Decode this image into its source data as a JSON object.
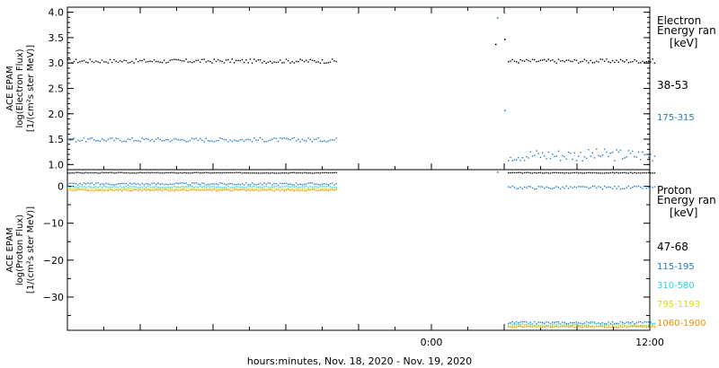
{
  "x_axis": {
    "label": "hours:minutes, Nov. 18, 2020 - Nov. 19, 2020",
    "range_hours": [
      -20,
      12
    ],
    "tick_labels": [
      {
        "hour": 0,
        "text": "0:00"
      },
      {
        "hour": 12,
        "text": "12:00"
      }
    ]
  },
  "panels": [
    {
      "name": "electron",
      "ylabel_lines": [
        "ACE EPAM",
        "log(Electron Flux)",
        "[1/(cm²s ster MeV)]"
      ],
      "ylim": [
        0.9,
        4.1
      ],
      "ticks": [
        1.0,
        1.5,
        2.0,
        2.5,
        3.0,
        3.5,
        4.0
      ],
      "tick_labels": [
        "1.0",
        "1.5",
        "2.0",
        "2.5",
        "3.0",
        "3.5",
        "4.0"
      ],
      "legend_title_lines": [
        "Electron",
        "Energy ran",
        "[keV]"
      ],
      "legend": [
        {
          "label": "38-53",
          "color": "#000000"
        },
        {
          "label": "175-315",
          "color": "#1f78c8"
        }
      ]
    },
    {
      "name": "proton",
      "ylabel_lines": [
        "ACE EPAM",
        "log(Proton Flux)",
        "[1/(cm²s ster MeV)]"
      ],
      "ylim": [
        -39,
        4.5
      ],
      "ticks": [
        0,
        -10,
        -20,
        -30
      ],
      "tick_labels": [
        "0",
        "−10",
        "−20",
        "−30"
      ],
      "legend_title_lines": [
        "Proton",
        "Energy ran",
        "[keV]"
      ],
      "legend": [
        {
          "label": "47-68",
          "color": "#000000"
        },
        {
          "label": "115-195",
          "color": "#1f78c8"
        },
        {
          "label": "310-580",
          "color": "#29d3e0"
        },
        {
          "label": "795-1193",
          "color": "#d8e000"
        },
        {
          "label": "1060-1900",
          "color": "#f08c00"
        }
      ]
    }
  ],
  "chart_data": [
    {
      "type": "scatter",
      "ylabel": "log(Electron Flux) [1/(cm²s ster MeV)]",
      "xlabel": "hours:minutes, Nov. 18, 2020 - Nov. 19, 2020",
      "xlim_hours": [
        -20,
        12
      ],
      "ylim": [
        0.9,
        4.1
      ],
      "series": [
        {
          "name": "38-53",
          "segments": [
            {
              "x_start": -20,
              "x_end": -5.2,
              "y": 3.05,
              "scatter": 0.04
            },
            {
              "x_start": 4.2,
              "x_end": 12.3,
              "y": 3.05,
              "scatter": 0.04
            }
          ],
          "points": [
            {
              "x": 3.5,
              "y": 3.38
            },
            {
              "x": 4.0,
              "y": 3.48
            }
          ]
        },
        {
          "name": "175-315",
          "segments": [
            {
              "x_start": -20,
              "x_end": -5.2,
              "y": 1.5,
              "scatter": 0.04
            },
            {
              "x_start": 4.2,
              "x_end": 12.3,
              "y": 1.2,
              "scatter": 0.12
            }
          ],
          "points": [
            {
              "x": 3.6,
              "y": 3.9
            },
            {
              "x": 4.0,
              "y": 2.08
            }
          ]
        }
      ]
    },
    {
      "type": "scatter",
      "ylabel": "log(Proton Flux) [1/(cm²s ster MeV)]",
      "xlabel": "hours:minutes, Nov. 18, 2020 - Nov. 19, 2020",
      "xlim_hours": [
        -20,
        12
      ],
      "ylim": [
        -39,
        4.5
      ],
      "series": [
        {
          "name": "47-68",
          "segments": [
            {
              "x_start": -20,
              "x_end": -5.2,
              "y": 3.8,
              "scatter": 0.1
            },
            {
              "x_start": 4.2,
              "x_end": 12.3,
              "y": 3.8,
              "scatter": 0.1
            }
          ]
        },
        {
          "name": "115-195",
          "segments": [
            {
              "x_start": -20,
              "x_end": -5.2,
              "y": 0.8,
              "scatter": 0.3
            },
            {
              "x_start": 4.2,
              "x_end": 12.3,
              "y": -0.2,
              "scatter": 0.4
            },
            {
              "x_start": 4.2,
              "x_end": 12.3,
              "y": -36.8,
              "scatter": 0.3
            }
          ],
          "points": [
            {
              "x": 3.6,
              "y": 4.0
            }
          ]
        },
        {
          "name": "310-580",
          "segments": [
            {
              "x_start": -20,
              "x_end": -5.2,
              "y": 0.0,
              "scatter": 0.2
            },
            {
              "x_start": 4.2,
              "x_end": 12.3,
              "y": -37.3,
              "scatter": 0.3
            }
          ]
        },
        {
          "name": "795-1193",
          "segments": [
            {
              "x_start": -20,
              "x_end": -5.2,
              "y": -0.5,
              "scatter": 0.2
            },
            {
              "x_start": 4.2,
              "x_end": 12.3,
              "y": -37.6,
              "scatter": 0.2
            }
          ]
        },
        {
          "name": "1060-1900",
          "segments": [
            {
              "x_start": -20,
              "x_end": -5.2,
              "y": -0.9,
              "scatter": 0.2
            },
            {
              "x_start": 4.2,
              "x_end": 12.3,
              "y": -37.9,
              "scatter": 0.2
            }
          ]
        }
      ]
    }
  ]
}
